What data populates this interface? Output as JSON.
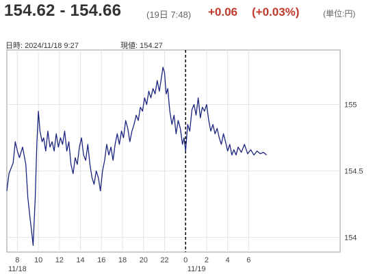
{
  "quote": {
    "bid_ask": "154.62 - 154.66",
    "time": "(19日 7:48)",
    "change": "+0.06",
    "change_pct": "(+0.03%)",
    "unit": "(単位:円)",
    "change_color": "#c0392b"
  },
  "info": {
    "datetime": "日時: 2024/11/18 9:27",
    "current": "現値: 154.27"
  },
  "chart_data": {
    "type": "line",
    "line_color": "#1a237e",
    "x_unit": "hours since 2024/11/18 07:00",
    "x_range": [
      0,
      31.7
    ],
    "ylim": [
      153.89,
      155.41
    ],
    "yticks": [
      154,
      154.5,
      155
    ],
    "ytick_labels": [
      "154",
      "154.5",
      "155"
    ],
    "xticks": [
      {
        "x": 1,
        "label": "8"
      },
      {
        "x": 3,
        "label": "10"
      },
      {
        "x": 5,
        "label": "12"
      },
      {
        "x": 7,
        "label": "14"
      },
      {
        "x": 9,
        "label": "16"
      },
      {
        "x": 11,
        "label": "18"
      },
      {
        "x": 13,
        "label": "20"
      },
      {
        "x": 15,
        "label": "22"
      },
      {
        "x": 17,
        "label": "0"
      },
      {
        "x": 19,
        "label": "2"
      },
      {
        "x": 21,
        "label": "4"
      },
      {
        "x": 23,
        "label": "6"
      }
    ],
    "date_labels": [
      {
        "x": 0,
        "label": "11/18"
      },
      {
        "x": 17,
        "label": "11/19"
      }
    ],
    "day_divider_x": 17,
    "grid": true,
    "series": [
      {
        "x": [
          0,
          0.2,
          0.4,
          0.6,
          0.8,
          1.0,
          1.2,
          1.5,
          1.8,
          2.0,
          2.2,
          2.35,
          2.5,
          2.7,
          2.85,
          3.0,
          3.15,
          3.35,
          3.5,
          3.7,
          3.9,
          4.1,
          4.3,
          4.5,
          4.7,
          4.9,
          5.1,
          5.3,
          5.5,
          5.7,
          5.9,
          6.1,
          6.3,
          6.5,
          6.7,
          6.9,
          7.1,
          7.3,
          7.5,
          7.7,
          7.9,
          8.1,
          8.3,
          8.5,
          8.7,
          8.9,
          9.1,
          9.3,
          9.5,
          9.7,
          9.9,
          10.1,
          10.3,
          10.5,
          10.7,
          10.9,
          11.1,
          11.3,
          11.5,
          11.7,
          11.9,
          12.1,
          12.3,
          12.5,
          12.7,
          12.9,
          13.1,
          13.3,
          13.5,
          13.7,
          13.9,
          14.1,
          14.3,
          14.5,
          14.7,
          14.85,
          15.0,
          15.15,
          15.3,
          15.5,
          15.7,
          15.9,
          16.1,
          16.3,
          16.5,
          16.7,
          16.85,
          17.0,
          17.2,
          17.4,
          17.6,
          17.8,
          18.0,
          18.2,
          18.4,
          18.6,
          18.8,
          19.0,
          19.2,
          19.4,
          19.6,
          19.8,
          20.0,
          20.2,
          20.4,
          20.6,
          20.8,
          21.0,
          21.2,
          21.4,
          21.6,
          21.8,
          22.0,
          22.3,
          22.6,
          22.9,
          23.2,
          23.5,
          23.8,
          24.1,
          24.4,
          24.7
        ],
        "y": [
          154.35,
          154.48,
          154.52,
          154.56,
          154.72,
          154.65,
          154.6,
          154.68,
          154.55,
          154.3,
          154.15,
          154.05,
          153.94,
          154.3,
          154.7,
          154.95,
          154.8,
          154.72,
          154.75,
          154.65,
          154.8,
          154.68,
          154.72,
          154.65,
          154.78,
          154.68,
          154.75,
          154.7,
          154.8,
          154.65,
          154.72,
          154.55,
          154.48,
          154.6,
          154.55,
          154.68,
          154.75,
          154.62,
          154.58,
          154.7,
          154.55,
          154.45,
          154.4,
          154.5,
          154.45,
          154.35,
          154.5,
          154.58,
          154.7,
          154.62,
          154.68,
          154.58,
          154.7,
          154.78,
          154.7,
          154.8,
          154.75,
          154.88,
          154.82,
          154.72,
          154.8,
          154.85,
          154.92,
          154.88,
          154.98,
          154.95,
          155.05,
          155.0,
          155.1,
          155.05,
          155.12,
          155.08,
          155.18,
          155.1,
          155.2,
          155.28,
          155.24,
          155.08,
          155.12,
          154.95,
          154.85,
          154.92,
          154.78,
          154.88,
          154.82,
          154.7,
          154.75,
          154.65,
          154.85,
          154.8,
          154.96,
          155.0,
          154.92,
          155.05,
          154.9,
          154.98,
          154.95,
          155.0,
          154.88,
          154.8,
          154.85,
          154.78,
          154.82,
          154.75,
          154.7,
          154.78,
          154.72,
          154.65,
          154.7,
          154.62,
          154.66,
          154.62,
          154.68,
          154.64,
          154.7,
          154.63,
          154.66,
          154.62,
          154.65,
          154.63,
          154.64,
          154.62
        ]
      }
    ]
  }
}
